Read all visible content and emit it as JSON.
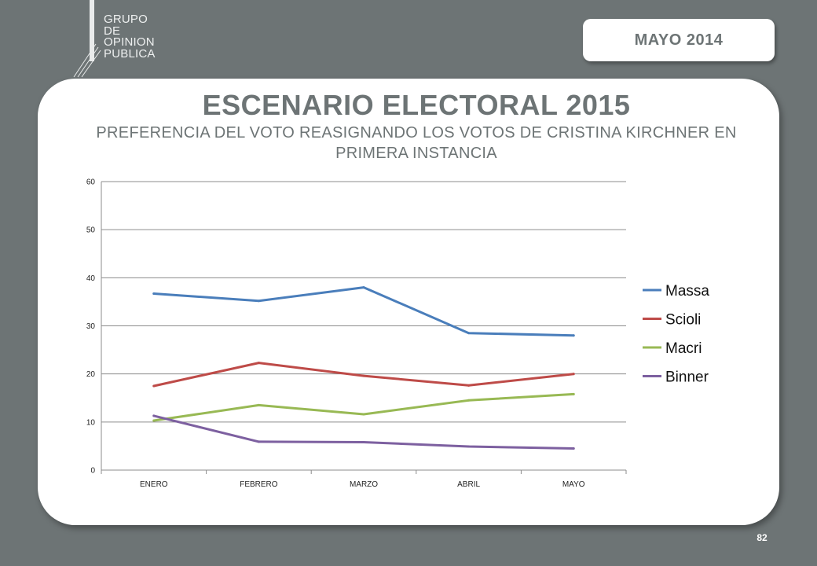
{
  "logo": {
    "lines": [
      "GRUPO",
      "DE",
      "OPINION",
      "PUBLICA"
    ]
  },
  "header": {
    "date_label": "MAYO  2014"
  },
  "slide": {
    "title": "ESCENARIO ELECTORAL 2015",
    "subtitle": "PREFERENCIA DEL VOTO REASIGNANDO LOS VOTOS DE CRISTINA KIRCHNER EN PRIMERA INSTANCIA"
  },
  "chart_data": {
    "type": "line",
    "title": "",
    "xlabel": "",
    "ylabel": "",
    "categories": [
      "ENERO",
      "FEBRERO",
      "MARZO",
      "ABRIL",
      "MAYO"
    ],
    "ylim": [
      0,
      60
    ],
    "yticks": [
      "0",
      "10",
      "20",
      "30",
      "40",
      "50",
      "60"
    ],
    "grid": true,
    "legend_position": "right",
    "series": [
      {
        "name": "Massa",
        "color": "#4a7ebb",
        "values": [
          36.7,
          35.2,
          38.0,
          28.5,
          28.0
        ]
      },
      {
        "name": "Scioli",
        "color": "#be4b48",
        "values": [
          17.5,
          22.3,
          19.6,
          17.6,
          20.0
        ]
      },
      {
        "name": "Macri",
        "color": "#98b954",
        "values": [
          10.3,
          13.5,
          11.6,
          14.5,
          15.8
        ]
      },
      {
        "name": "Binner",
        "color": "#7d60a0",
        "values": [
          11.3,
          5.9,
          5.8,
          4.9,
          4.5
        ]
      }
    ]
  },
  "footer": {
    "page_number": "82"
  }
}
